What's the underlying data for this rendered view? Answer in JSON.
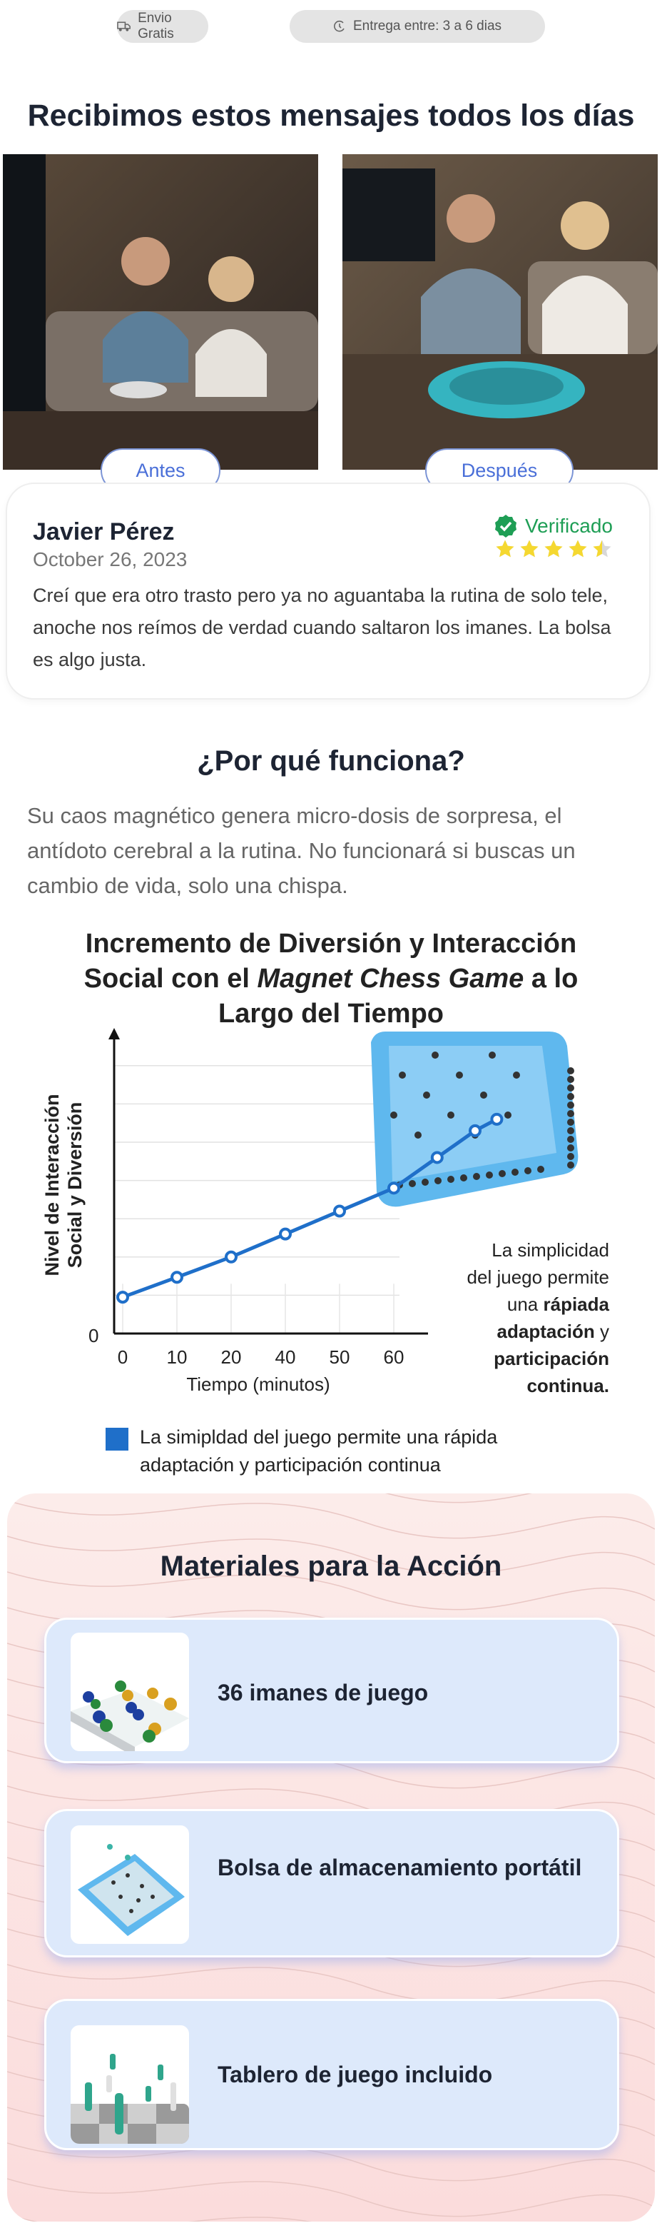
{
  "shipping": {
    "free_label": "Envio Gratis",
    "delivery_label": "Entrega entre: 3 a 6 dias"
  },
  "testimonials": {
    "title": "Recibimos estos mensajes todos los días",
    "before_label": "Antes",
    "after_label": "Después",
    "review": {
      "name": "Javier Pérez",
      "date": "October 26, 2023",
      "verified_label": "Verificado",
      "rating": 4.5,
      "rating_max": 5,
      "text": "Creí que era otro trasto pero ya no aguantaba la rutina de solo tele, anoche nos reímos de verdad cuando saltaron los imanes. La bolsa es algo justa."
    }
  },
  "why": {
    "title": "¿Por qué funciona?",
    "body": "Su caos magnético genera micro-dosis de sorpresa, el antídoto cerebral a la rutina. No funcionará si buscas un cambio de vida, solo una chispa."
  },
  "chart_data": {
    "type": "line",
    "title_parts": [
      "Incremento de Diversión y Interacción Social con el ",
      "Magnet Chess Game",
      " a lo Largo del Tiempo"
    ],
    "xlabel": "Tiempo (minutos)",
    "ylabel_lines": [
      "Nivel de Interacción",
      "Social y Diversión"
    ],
    "x_ticks": [
      0,
      10,
      20,
      40,
      50,
      60
    ],
    "y_ticks": [
      "0"
    ],
    "x": [
      0,
      10,
      20,
      40,
      50,
      60,
      68,
      75,
      79
    ],
    "y": [
      0.95,
      1.47,
      2.0,
      2.6,
      3.2,
      3.8,
      4.6,
      5.3,
      5.6
    ],
    "ylim": [
      0,
      7
    ],
    "grid": true,
    "color": "#1f6fc9",
    "annotation": {
      "normal1": "La simplicidad",
      "normal2": "del juego permite",
      "normal3": "una",
      "bold3": "rápiada",
      "bold4": "adaptación",
      "normal4": "y",
      "bold5": "participación",
      "bold6": "continua."
    },
    "legend": {
      "label": "La simipldad del juego permite una rápida adaptación y participación continua",
      "position": "bottom-left"
    }
  },
  "materials": {
    "title": "Materiales para la Acción",
    "items": [
      {
        "label": "36 imanes de juego"
      },
      {
        "label": "Bolsa de almacenamiento portátil"
      },
      {
        "label": "Tablero de juego incluido"
      }
    ]
  },
  "colors": {
    "accent": "#4a6fd8",
    "verified": "#1e9e55",
    "star": "#f5d830",
    "chart_line": "#1f6fc9"
  }
}
